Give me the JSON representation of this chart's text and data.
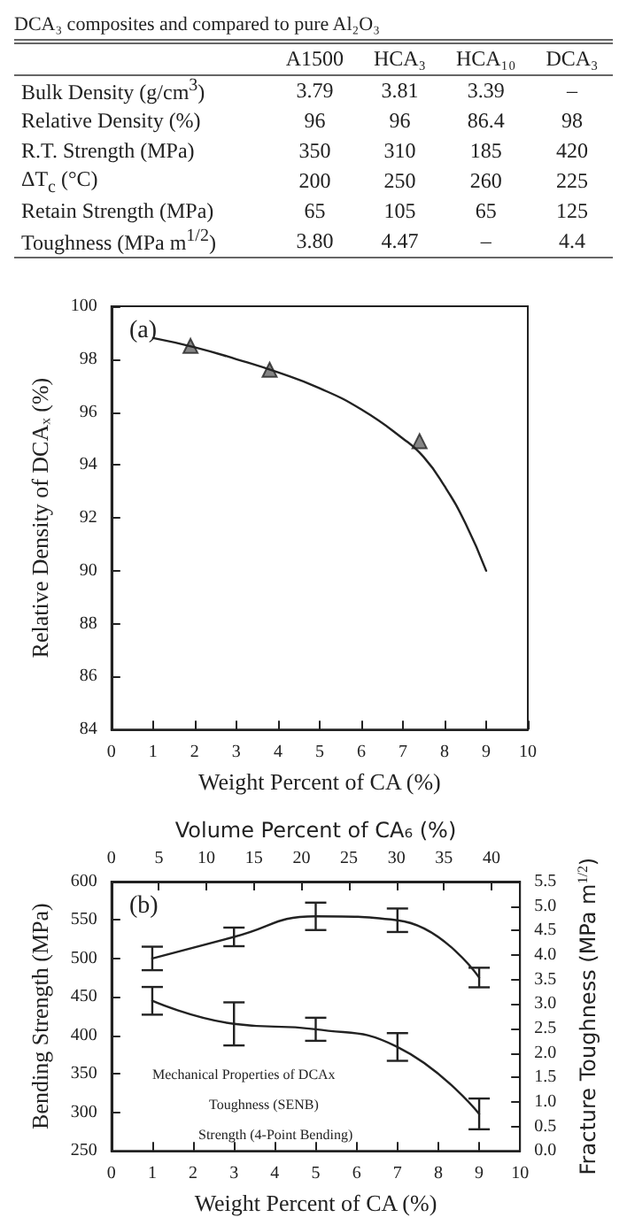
{
  "chart_data": [
    {
      "type": "other",
      "title": "DCA₃ composites and compared to pure Al₂O₃",
      "categories": [
        "A1500",
        "HCA₃",
        "HCA₁₀",
        "DCA₃"
      ],
      "y_categories": [
        "Bulk Density (g/cm$^{3}$)",
        "Relative Density (%)",
        "R.T. Strength (MPa)",
        "ΔT$_{c}$ (°C)",
        "Retain Strength (MPa)",
        "Toughness (MPa m$^{1/2}$)"
      ],
      "cell_labels": [
        [
          "3.79",
          "3.81",
          "3.39",
          "–"
        ],
        [
          "96",
          "96",
          "86.4",
          "98"
        ],
        [
          "350",
          "310",
          "185",
          "420"
        ],
        [
          "200",
          "250",
          "260",
          "225"
        ],
        [
          "65",
          "105",
          "65",
          "125"
        ],
        [
          "3.80",
          "4.47",
          "–",
          "4.4"
        ]
      ]
    },
    {
      "type": "line",
      "title": "(a)",
      "xlabel": "Weight Percent of CA (%)",
      "ylabel": "Relative Density of DCAₓ (%)",
      "xlim": [
        0,
        10
      ],
      "xticks": [
        0,
        1,
        2,
        3,
        4,
        5,
        6,
        7,
        8,
        9,
        10
      ],
      "ylim": [
        84,
        100
      ],
      "yticks": [
        84,
        86,
        88,
        90,
        92,
        94,
        96,
        98,
        100
      ],
      "grid": false,
      "series": [
        {
          "type": "line",
          "color": "#222222",
          "marker": "none",
          "x": [
            1,
            2,
            3,
            4,
            5,
            6,
            7,
            7.5,
            8,
            8.5,
            9
          ],
          "values": [
            98.8,
            98.45,
            98.0,
            97.5,
            96.9,
            96.1,
            95.0,
            94.3,
            93.2,
            91.8,
            90.0
          ]
        },
        {
          "type": "scatter",
          "color": "#222222",
          "marker": "triangle",
          "x": [
            1.9,
            3.8,
            7.4
          ],
          "values": [
            98.5,
            97.6,
            94.9
          ]
        }
      ]
    },
    {
      "type": "line",
      "title": "(b)",
      "xlabel": "Weight Percent of CA (%)",
      "x2label": "Volume Percent of CA₆ (%)",
      "ylabel": "Bending Strength (MPa)",
      "y2label": "Fracture Toughness (MPa m$^{1/2}$)",
      "xlim": [
        0,
        10
      ],
      "xticks": [
        0,
        1,
        2,
        3,
        4,
        5,
        6,
        7,
        8,
        9,
        10
      ],
      "x2lim": [
        0,
        43
      ],
      "x2ticks": [
        0,
        5,
        10,
        15,
        20,
        25,
        30,
        35,
        40
      ],
      "ylim": [
        250,
        600
      ],
      "yticks": [
        250,
        300,
        350,
        400,
        450,
        500,
        550,
        600
      ],
      "y2lim": [
        0,
        5.5
      ],
      "y2ticks": [
        {
          "value": 0,
          "label": "0.0"
        },
        0.5,
        {
          "value": 1,
          "label": "1.0"
        },
        1.5,
        {
          "value": 2,
          "label": "2.0"
        },
        2.5,
        {
          "value": 3,
          "label": "3.0"
        },
        3.5,
        {
          "value": 4,
          "label": "4.0"
        },
        4.5,
        {
          "value": 5,
          "label": "5.0"
        },
        5.5
      ],
      "grid": false,
      "marker": "none",
      "annotations": [
        "Mechanical Properties of DCAx",
        "Toughness (SENB)",
        "Strength (4-Point Bending)"
      ],
      "series": [
        {
          "axis": "y2",
          "color": "#222222",
          "x": [
            1,
            3,
            5,
            7,
            9
          ],
          "values": [
            3.93,
            4.37,
            4.79,
            4.71,
            3.54
          ],
          "errors": [
            0.24,
            0.19,
            0.28,
            0.24,
            0.2
          ]
        },
        {
          "axis": "y",
          "color": "#222222",
          "x": [
            1,
            3,
            5,
            7,
            9
          ],
          "values": [
            445,
            415,
            408,
            385,
            298
          ],
          "errors": [
            18,
            28,
            15,
            18,
            20
          ]
        }
      ]
    }
  ]
}
